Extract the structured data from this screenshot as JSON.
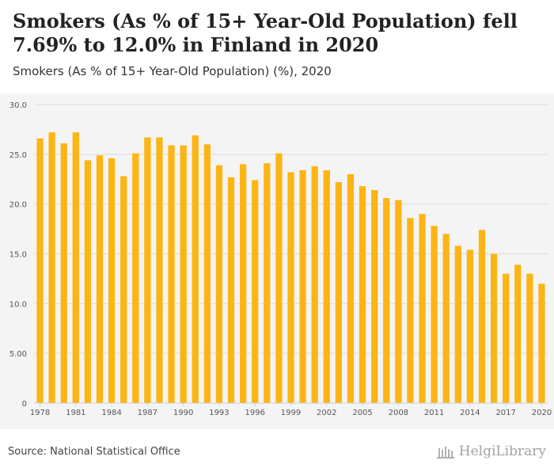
{
  "header": {
    "title": "Smokers (As % of 15+ Year-Old Population) fell 7.69% to 12.0% in Finland in 2020",
    "subtitle": "Smokers (As % of 15+ Year-Old Population) (%), 2020"
  },
  "footer": {
    "source": "Source: National Statistical Office",
    "brand": "HelgiLibrary"
  },
  "colors": {
    "bar": "#FDB515",
    "grid": "#dcdcdc",
    "background": "#f4f4f4"
  },
  "chart_data": {
    "type": "bar",
    "title": "Smokers (As % of 15+ Year-Old Population) fell 7.69% to 12.0% in Finland in 2020",
    "subtitle": "Smokers (As % of 15+ Year-Old Population) (%), 2020",
    "xlabel": "",
    "ylabel": "",
    "ylim": [
      0,
      30
    ],
    "yticks": [
      "0",
      "5.00",
      "10.0",
      "15.0",
      "20.0",
      "25.0",
      "30.0"
    ],
    "ytick_values": [
      0,
      5,
      10,
      15,
      20,
      25,
      30
    ],
    "grid": true,
    "legend": "none",
    "categories": [
      "1978",
      "1979",
      "1980",
      "1981",
      "1982",
      "1983",
      "1984",
      "1985",
      "1986",
      "1987",
      "1988",
      "1989",
      "1990",
      "1991",
      "1992",
      "1993",
      "1994",
      "1995",
      "1996",
      "1997",
      "1998",
      "1999",
      "2000",
      "2001",
      "2002",
      "2003",
      "2004",
      "2005",
      "2006",
      "2007",
      "2008",
      "2009",
      "2010",
      "2011",
      "2012",
      "2013",
      "2014",
      "2015",
      "2016",
      "2017",
      "2018",
      "2019",
      "2020"
    ],
    "xtick_labels": [
      "1978",
      "1981",
      "1984",
      "1987",
      "1990",
      "1993",
      "1996",
      "1999",
      "2002",
      "2005",
      "2008",
      "2011",
      "2014",
      "2017",
      "2020"
    ],
    "values": [
      26.6,
      27.2,
      26.1,
      27.2,
      24.4,
      24.9,
      24.6,
      22.8,
      25.1,
      26.7,
      26.7,
      25.9,
      25.9,
      26.9,
      26.0,
      23.9,
      22.7,
      24.0,
      22.4,
      24.1,
      25.1,
      23.2,
      23.4,
      23.8,
      23.4,
      22.2,
      23.0,
      21.8,
      21.4,
      20.6,
      20.4,
      18.6,
      19.0,
      17.8,
      17.0,
      15.8,
      15.4,
      17.4,
      15.0,
      13.0,
      13.9,
      13.0,
      12.0
    ]
  }
}
